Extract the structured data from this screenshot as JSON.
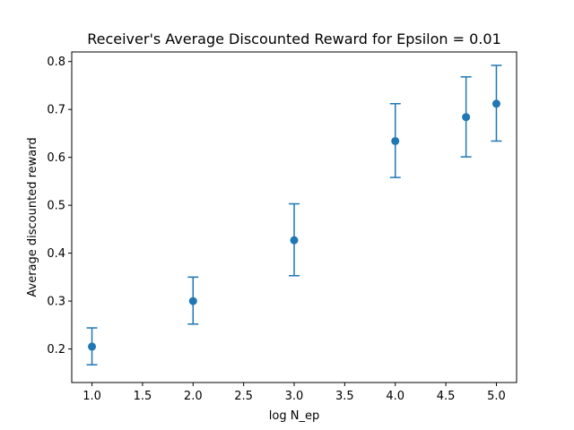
{
  "chart_data": {
    "type": "scatter",
    "title": "Receiver's Average Discounted Reward for Epsilon = 0.01",
    "xlabel": "log N_ep",
    "ylabel": "Average discounted reward",
    "xlim": [
      0.8,
      5.2
    ],
    "ylim": [
      0.13,
      0.82
    ],
    "xticks": [
      "1.0",
      "1.5",
      "2.0",
      "2.5",
      "3.0",
      "3.5",
      "4.0",
      "4.5",
      "5.0"
    ],
    "yticks": [
      "0.2",
      "0.3",
      "0.4",
      "0.5",
      "0.6",
      "0.7",
      "0.8"
    ],
    "grid": false,
    "color": "#1f77b4",
    "series": [
      {
        "x": [
          1.0,
          2.0,
          3.0,
          4.0,
          4.7,
          5.0
        ],
        "y": [
          0.205,
          0.3,
          0.427,
          0.634,
          0.684,
          0.712
        ],
        "err_low": [
          0.167,
          0.252,
          0.353,
          0.558,
          0.601,
          0.634
        ],
        "err_high": [
          0.244,
          0.35,
          0.503,
          0.712,
          0.768,
          0.792
        ]
      }
    ]
  }
}
